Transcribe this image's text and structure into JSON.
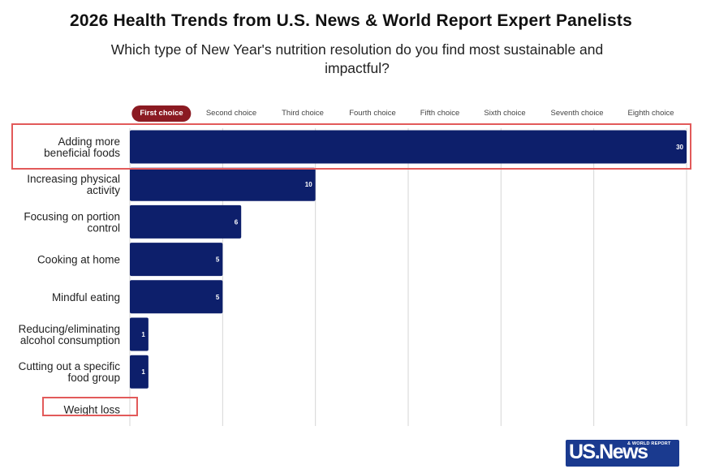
{
  "title": "2026 Health Trends from U.S. News & World Report Expert Panelists",
  "subtitle": "Which type of New Year's nutrition resolution do you find most sustainable and impactful?",
  "tabs": [
    {
      "label": "First choice",
      "active": true
    },
    {
      "label": "Second choice",
      "active": false
    },
    {
      "label": "Third choice",
      "active": false
    },
    {
      "label": "Fourth choice",
      "active": false
    },
    {
      "label": "Fifth choice",
      "active": false
    },
    {
      "label": "Sixth choice",
      "active": false
    },
    {
      "label": "Seventh choice",
      "active": false
    },
    {
      "label": "Eighth choice",
      "active": false
    }
  ],
  "colors": {
    "bar": "#0d1f6b",
    "active_tab": "#8b1a22",
    "highlight": "#e25a5a",
    "grid": "#d6d6d6"
  },
  "chart_data": {
    "type": "bar",
    "orientation": "horizontal",
    "categories": [
      [
        "Adding more",
        "beneficial foods"
      ],
      [
        "Increasing physical",
        "activity"
      ],
      [
        "Focusing on portion",
        "control"
      ],
      [
        "Cooking at home"
      ],
      [
        "Mindful eating"
      ],
      [
        "Reducing/eliminating",
        "alcohol consumption"
      ],
      [
        "Cutting out a specific",
        "food group"
      ],
      [
        "Weight loss"
      ]
    ],
    "values": [
      30,
      10,
      6,
      5,
      5,
      1,
      1,
      0
    ],
    "xlim": [
      0,
      30
    ],
    "grid": true,
    "highlighted_categories": [
      "Adding more beneficial foods",
      "Weight loss"
    ]
  },
  "logo": {
    "text": "US.News",
    "subtext": "& WORLD REPORT"
  }
}
